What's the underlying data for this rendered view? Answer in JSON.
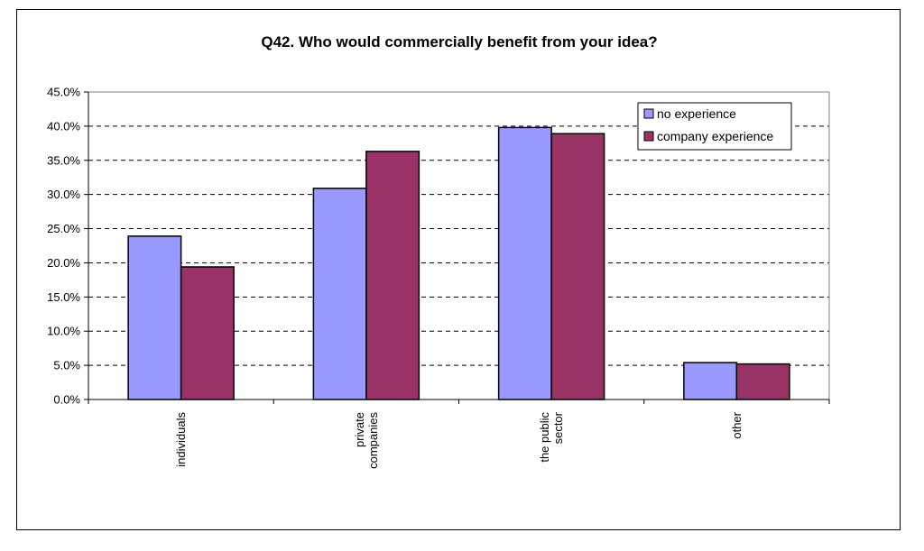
{
  "chart_data": {
    "type": "bar",
    "title": "Q42. Who would commercially benefit from your idea?",
    "categories": [
      [
        "individuals"
      ],
      [
        "private",
        "companies"
      ],
      [
        "the public",
        "sector"
      ],
      [
        "other"
      ]
    ],
    "series": [
      {
        "name": "no experience",
        "color": "#9999ff",
        "values": [
          23.9,
          30.9,
          39.8,
          5.4
        ]
      },
      {
        "name": "company experience",
        "color": "#993366",
        "values": [
          19.4,
          36.3,
          38.9,
          5.2
        ]
      }
    ],
    "ylim": [
      0,
      45
    ],
    "ytick_step": 5,
    "ytick_labels": [
      "0.0%",
      "5.0%",
      "10.0%",
      "15.0%",
      "20.0%",
      "25.0%",
      "30.0%",
      "35.0%",
      "40.0%",
      "45.0%"
    ],
    "grid": true,
    "grid_style": "dashed",
    "legend_position": "top-right"
  }
}
